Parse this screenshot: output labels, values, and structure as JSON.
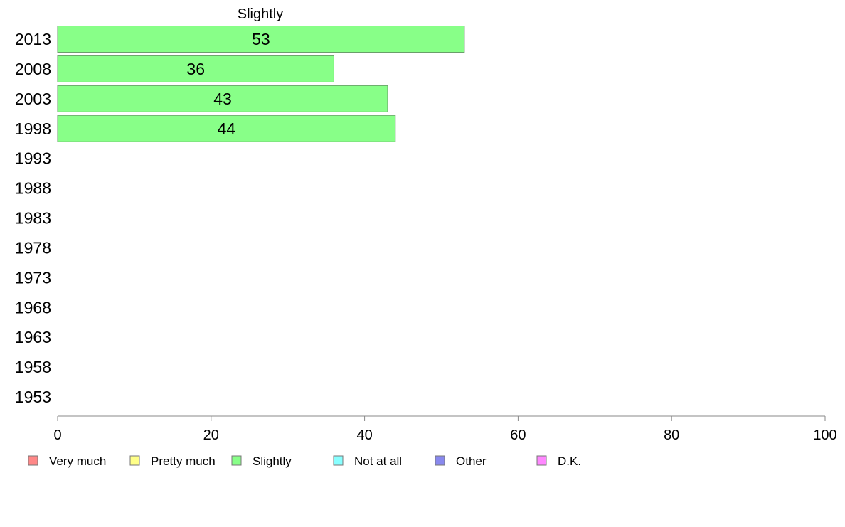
{
  "chart_data": {
    "type": "bar",
    "orientation": "horizontal",
    "title": "Slightly",
    "categories": [
      "2013",
      "2008",
      "2003",
      "1998",
      "1993",
      "1988",
      "1983",
      "1978",
      "1973",
      "1968",
      "1963",
      "1958",
      "1953"
    ],
    "series": [
      {
        "name": "Slightly",
        "color": "#88ff88",
        "values": [
          53,
          36,
          43,
          44,
          null,
          null,
          null,
          null,
          null,
          null,
          null,
          null,
          null
        ]
      }
    ],
    "data_labels": [
      "53",
      "36",
      "43",
      "44"
    ],
    "xlim": [
      0,
      100
    ],
    "xticks": [
      "0",
      "20",
      "40",
      "60",
      "80",
      "100"
    ],
    "grid": false,
    "legend_position": "bottom",
    "legend": [
      {
        "label": "Very much",
        "color": "#ff8888"
      },
      {
        "label": "Pretty much",
        "color": "#ffff88"
      },
      {
        "label": "Slightly",
        "color": "#88ff88"
      },
      {
        "label": "Not at all",
        "color": "#88ffff"
      },
      {
        "label": "Other",
        "color": "#8888ee"
      },
      {
        "label": "D.K.",
        "color": "#ff88ff"
      }
    ]
  }
}
